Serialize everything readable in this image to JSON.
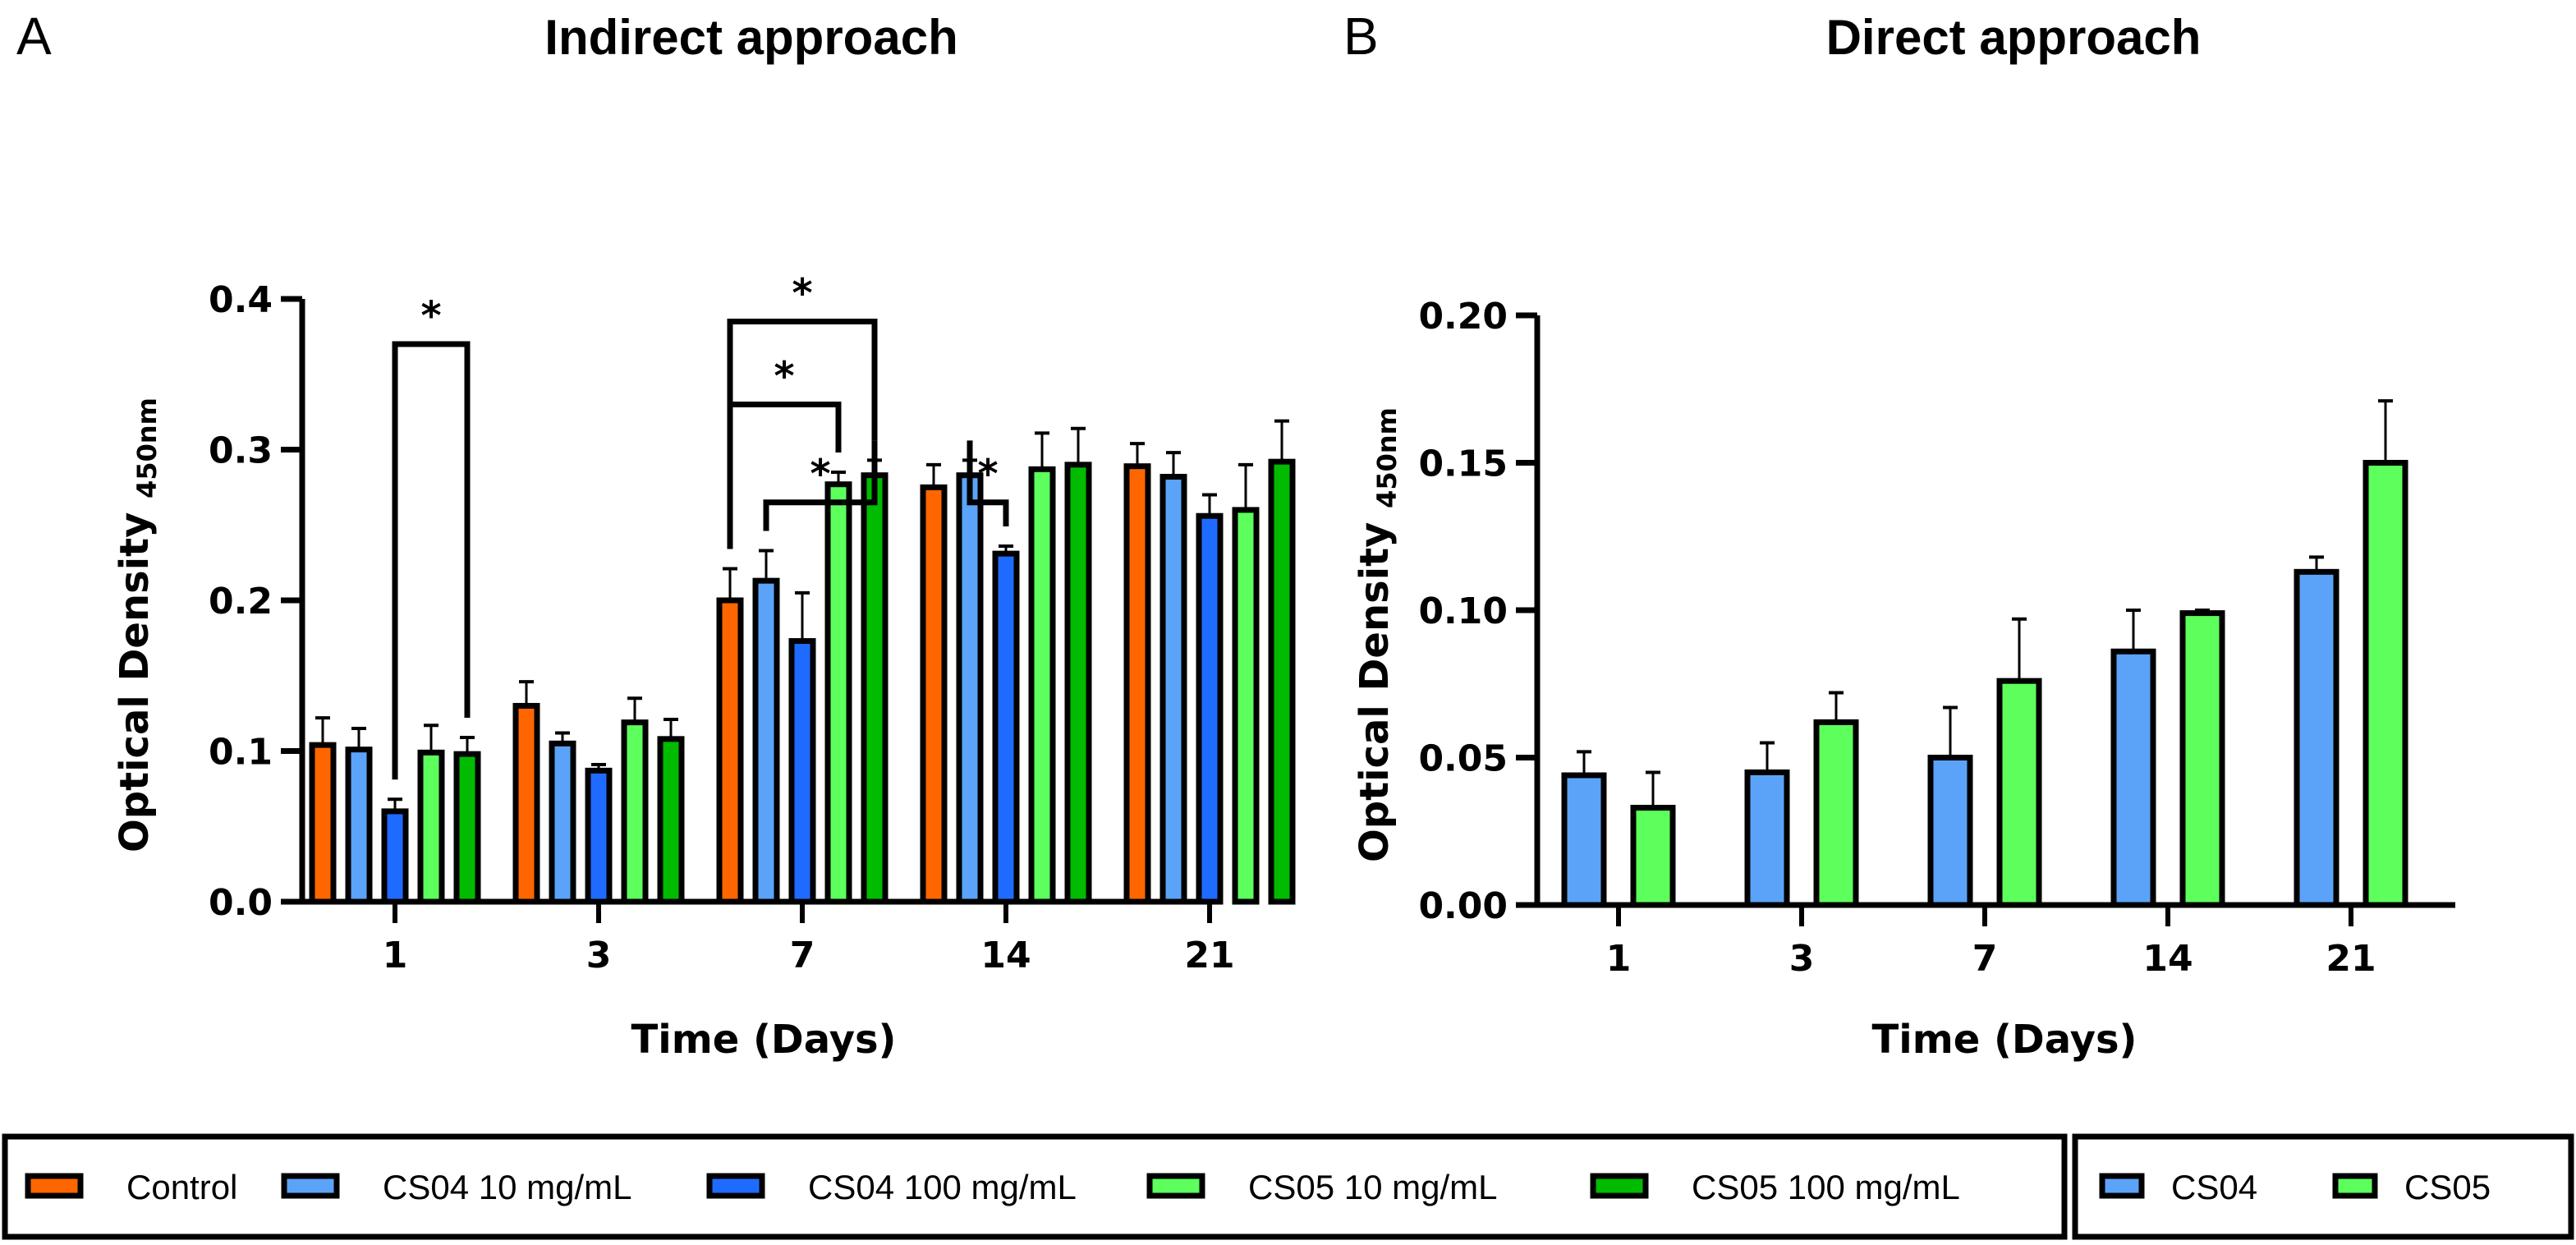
{
  "chart_data": [
    {
      "panel": "A",
      "type": "bar",
      "title": "Indirect approach",
      "xlabel": "Time (Days)",
      "ylabel": "Optical Density",
      "ylabel_subscript": "450nm",
      "ylim": [
        0,
        0.4
      ],
      "yticks": [
        "0.0",
        "0.1",
        "0.2",
        "0.3",
        "0.4"
      ],
      "ytick_values": [
        0,
        0.1,
        0.2,
        0.3,
        0.4
      ],
      "categories": [
        "1",
        "3",
        "7",
        "14",
        "21"
      ],
      "series": [
        {
          "name": "Control",
          "color": "#FF6600",
          "values": [
            0.104,
            0.13,
            0.2,
            0.275,
            0.289
          ],
          "error_top": [
            0.122,
            0.146,
            0.221,
            0.29,
            0.304
          ]
        },
        {
          "name": "CS04 10 mg/mL",
          "color": "#5BA3F8",
          "values": [
            0.101,
            0.105,
            0.213,
            0.283,
            0.282
          ],
          "error_top": [
            0.115,
            0.112,
            0.233,
            0.293,
            0.298
          ]
        },
        {
          "name": "CS04 100 mg/mL",
          "color": "#1F6BFF",
          "values": [
            0.06,
            0.087,
            0.173,
            0.231,
            0.256
          ],
          "error_top": [
            0.068,
            0.091,
            0.205,
            0.236,
            0.27
          ]
        },
        {
          "name": "CS05 10 mg/mL",
          "color": "#5CFF5C",
          "values": [
            0.099,
            0.119,
            0.277,
            0.287,
            0.26
          ],
          "error_top": [
            0.117,
            0.135,
            0.285,
            0.311,
            0.29
          ]
        },
        {
          "name": "CS05 100 mg/mL",
          "color": "#00BB00",
          "values": [
            0.098,
            0.108,
            0.283,
            0.29,
            0.292
          ],
          "error_top": [
            0.109,
            0.121,
            0.293,
            0.314,
            0.319
          ]
        }
      ],
      "significance": [
        {
          "category": "1",
          "from_series": 2,
          "to_series": 4,
          "label": "*",
          "level": 0.37
        },
        {
          "category": "7",
          "from_series": 1,
          "to_series": 4,
          "label": "*",
          "level": 0.265
        },
        {
          "category": "7",
          "from_series": 0,
          "to_series": 3,
          "label": "*",
          "level": 0.33
        },
        {
          "category": "7",
          "from_series": 0,
          "to_series": 4,
          "label": "*",
          "level": 0.385
        },
        {
          "category": "14",
          "from_series": 1,
          "to_series": 2,
          "label": "*",
          "level": 0.265
        }
      ],
      "legend": [
        "Control",
        "CS04 10 mg/mL",
        "CS04 100 mg/mL",
        "CS05 10 mg/mL",
        "CS05 100 mg/mL"
      ],
      "legend_placement": "bottom"
    },
    {
      "panel": "B",
      "type": "bar",
      "title": "Direct approach",
      "xlabel": "Time (Days)",
      "ylabel": "Optical Density",
      "ylabel_subscript": "450nm",
      "ylim": [
        0,
        0.2
      ],
      "yticks": [
        "0.00",
        "0.05",
        "0.10",
        "0.15",
        "0.20"
      ],
      "ytick_values": [
        0,
        0.05,
        0.1,
        0.15,
        0.2
      ],
      "categories": [
        "1",
        "3",
        "7",
        "14",
        "21"
      ],
      "series": [
        {
          "name": "CS04",
          "color": "#5BA3F8",
          "values": [
            0.044,
            0.045,
            0.05,
            0.086,
            0.113
          ],
          "error_top": [
            0.052,
            0.055,
            0.067,
            0.1,
            0.118
          ]
        },
        {
          "name": "CS05",
          "color": "#5CFF5C",
          "values": [
            0.033,
            0.062,
            0.076,
            0.099,
            0.15
          ],
          "error_top": [
            0.045,
            0.072,
            0.097,
            0.1,
            0.171
          ]
        }
      ],
      "legend": [
        "CS04",
        "CS05"
      ],
      "legend_placement": "bottom-right"
    }
  ]
}
